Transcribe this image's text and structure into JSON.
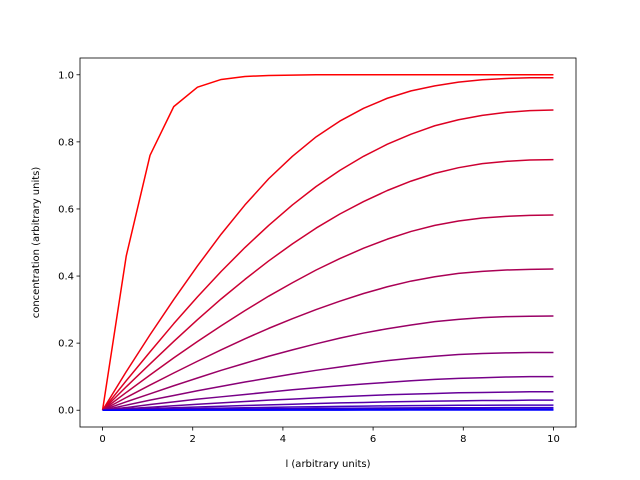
{
  "chart_data": {
    "type": "line",
    "title": "",
    "xlabel": "l (arbitrary units)",
    "ylabel": "concentration (arbitrary units)",
    "xlim": [
      -0.5,
      10.5
    ],
    "ylim": [
      -0.05,
      1.05
    ],
    "xticks": [
      0,
      2,
      4,
      6,
      8,
      10
    ],
    "yticks": [
      0.0,
      0.2,
      0.4,
      0.6,
      0.8,
      1.0
    ],
    "xtick_labels": [
      "0",
      "2",
      "4",
      "6",
      "8",
      "10"
    ],
    "ytick_labels": [
      "0.0",
      "0.2",
      "0.4",
      "0.6",
      "0.8",
      "1.0"
    ],
    "grid": false,
    "series": [
      {
        "color": "#ff0000",
        "x": [
          0,
          0.526,
          1.053,
          1.579,
          2.105,
          2.632,
          3.158,
          3.684,
          4.211,
          4.737,
          5.263,
          5.789,
          6.316,
          6.842,
          7.368,
          7.895,
          8.421,
          8.947,
          9.474,
          10
        ],
        "y": [
          0,
          0.46,
          0.76,
          0.905,
          0.963,
          0.986,
          0.995,
          0.998,
          0.999,
          1.0,
          1.0,
          1.0,
          1.0,
          1.0,
          1.0,
          1.0,
          1.0,
          1.0,
          1.0,
          1.0
        ]
      },
      {
        "color": "#ee0011",
        "x": [
          0,
          0.526,
          1.053,
          1.579,
          2.105,
          2.632,
          3.158,
          3.684,
          4.211,
          4.737,
          5.263,
          5.789,
          6.316,
          6.842,
          7.368,
          7.895,
          8.421,
          8.947,
          9.474,
          10
        ],
        "y": [
          0,
          0.115,
          0.225,
          0.33,
          0.43,
          0.525,
          0.612,
          0.69,
          0.757,
          0.815,
          0.862,
          0.9,
          0.93,
          0.952,
          0.967,
          0.978,
          0.985,
          0.989,
          0.991,
          0.991
        ]
      },
      {
        "color": "#dd0022",
        "x": [
          0,
          0.526,
          1.053,
          1.579,
          2.105,
          2.632,
          3.158,
          3.684,
          4.211,
          4.737,
          5.263,
          5.789,
          6.316,
          6.842,
          7.368,
          7.895,
          8.421,
          8.947,
          9.474,
          10
        ],
        "y": [
          0,
          0.088,
          0.174,
          0.258,
          0.338,
          0.414,
          0.485,
          0.551,
          0.612,
          0.667,
          0.715,
          0.757,
          0.793,
          0.823,
          0.848,
          0.866,
          0.879,
          0.888,
          0.893,
          0.895
        ]
      },
      {
        "color": "#cc0033",
        "x": [
          0,
          0.526,
          1.053,
          1.579,
          2.105,
          2.632,
          3.158,
          3.684,
          4.211,
          4.737,
          5.263,
          5.789,
          6.316,
          6.842,
          7.368,
          7.895,
          8.421,
          8.947,
          9.474,
          10
        ],
        "y": [
          0,
          0.07,
          0.138,
          0.205,
          0.27,
          0.332,
          0.39,
          0.445,
          0.496,
          0.543,
          0.585,
          0.622,
          0.655,
          0.683,
          0.706,
          0.723,
          0.735,
          0.742,
          0.746,
          0.747
        ]
      },
      {
        "color": "#bb0044",
        "x": [
          0,
          0.526,
          1.053,
          1.579,
          2.105,
          2.632,
          3.158,
          3.684,
          4.211,
          4.737,
          5.263,
          5.789,
          6.316,
          6.842,
          7.368,
          7.895,
          8.421,
          8.947,
          9.474,
          10
        ],
        "y": [
          0,
          0.053,
          0.105,
          0.156,
          0.205,
          0.252,
          0.297,
          0.34,
          0.38,
          0.418,
          0.452,
          0.483,
          0.51,
          0.533,
          0.551,
          0.564,
          0.573,
          0.578,
          0.581,
          0.582
        ]
      },
      {
        "color": "#aa0055",
        "x": [
          0,
          0.526,
          1.053,
          1.579,
          2.105,
          2.632,
          3.158,
          3.684,
          4.211,
          4.737,
          5.263,
          5.789,
          6.316,
          6.842,
          7.368,
          7.895,
          8.421,
          8.947,
          9.474,
          10
        ],
        "y": [
          0,
          0.038,
          0.075,
          0.111,
          0.146,
          0.18,
          0.213,
          0.244,
          0.273,
          0.3,
          0.325,
          0.348,
          0.368,
          0.385,
          0.398,
          0.408,
          0.414,
          0.418,
          0.42,
          0.421
        ]
      },
      {
        "color": "#990066",
        "x": [
          0,
          0.526,
          1.053,
          1.579,
          2.105,
          2.632,
          3.158,
          3.684,
          4.211,
          4.737,
          5.263,
          5.789,
          6.316,
          6.842,
          7.368,
          7.895,
          8.421,
          8.947,
          9.474,
          10
        ],
        "y": [
          0,
          0.025,
          0.049,
          0.073,
          0.096,
          0.119,
          0.14,
          0.161,
          0.18,
          0.198,
          0.215,
          0.23,
          0.243,
          0.254,
          0.264,
          0.271,
          0.276,
          0.279,
          0.28,
          0.281
        ]
      },
      {
        "color": "#880077",
        "x": [
          0,
          0.526,
          1.053,
          1.579,
          2.105,
          2.632,
          3.158,
          3.684,
          4.211,
          4.737,
          5.263,
          5.789,
          6.316,
          6.842,
          7.368,
          7.895,
          8.421,
          8.947,
          9.474,
          10
        ],
        "y": [
          0,
          0.015,
          0.03,
          0.044,
          0.058,
          0.071,
          0.084,
          0.096,
          0.108,
          0.119,
          0.129,
          0.139,
          0.148,
          0.155,
          0.161,
          0.166,
          0.169,
          0.171,
          0.172,
          0.172
        ]
      },
      {
        "color": "#770088",
        "x": [
          0,
          0.526,
          1.053,
          1.579,
          2.105,
          2.632,
          3.158,
          3.684,
          4.211,
          4.737,
          5.263,
          5.789,
          6.316,
          6.842,
          7.368,
          7.895,
          8.421,
          8.947,
          9.474,
          10
        ],
        "y": [
          0,
          0.008,
          0.017,
          0.025,
          0.033,
          0.04,
          0.047,
          0.054,
          0.061,
          0.067,
          0.073,
          0.078,
          0.083,
          0.088,
          0.092,
          0.095,
          0.097,
          0.099,
          0.1,
          0.1
        ]
      },
      {
        "color": "#660099",
        "x": [
          0,
          0.526,
          1.053,
          1.579,
          2.105,
          2.632,
          3.158,
          3.684,
          4.211,
          4.737,
          5.263,
          5.789,
          6.316,
          6.842,
          7.368,
          7.895,
          8.421,
          8.947,
          9.474,
          10
        ],
        "y": [
          0,
          0.0045,
          0.009,
          0.0135,
          0.0178,
          0.022,
          0.026,
          0.03,
          0.033,
          0.037,
          0.04,
          0.043,
          0.046,
          0.048,
          0.05,
          0.052,
          0.053,
          0.054,
          0.055,
          0.055
        ]
      },
      {
        "color": "#5500aa",
        "x": [
          0,
          0.526,
          1.053,
          1.579,
          2.105,
          2.632,
          3.158,
          3.684,
          4.211,
          4.737,
          5.263,
          5.789,
          6.316,
          6.842,
          7.368,
          7.895,
          8.421,
          8.947,
          9.474,
          10
        ],
        "y": [
          0,
          0.0025,
          0.005,
          0.0073,
          0.0096,
          0.012,
          0.014,
          0.016,
          0.018,
          0.02,
          0.022,
          0.023,
          0.025,
          0.026,
          0.027,
          0.028,
          0.029,
          0.029,
          0.03,
          0.03
        ]
      },
      {
        "color": "#4400bb",
        "x": [
          0,
          0.526,
          1.053,
          1.579,
          2.105,
          2.632,
          3.158,
          3.684,
          4.211,
          4.737,
          5.263,
          5.789,
          6.316,
          6.842,
          7.368,
          7.895,
          8.421,
          8.947,
          9.474,
          10
        ],
        "y": [
          0,
          0.0013,
          0.0026,
          0.0039,
          0.0051,
          0.0063,
          0.0074,
          0.0085,
          0.0095,
          0.0105,
          0.0114,
          0.0122,
          0.013,
          0.0137,
          0.0142,
          0.0147,
          0.015,
          0.0152,
          0.0153,
          0.0153
        ]
      },
      {
        "color": "#3300cc",
        "x": [
          0,
          0.526,
          1.053,
          1.579,
          2.105,
          2.632,
          3.158,
          3.684,
          4.211,
          4.737,
          5.263,
          5.789,
          6.316,
          6.842,
          7.368,
          7.895,
          8.421,
          8.947,
          9.474,
          10
        ],
        "y": [
          0,
          0.0007,
          0.0014,
          0.002,
          0.0027,
          0.0033,
          0.0039,
          0.0044,
          0.0049,
          0.0054,
          0.0058,
          0.0062,
          0.0066,
          0.0069,
          0.0072,
          0.0074,
          0.0075,
          0.0076,
          0.0077,
          0.0077
        ]
      },
      {
        "color": "#2200dd",
        "x": [
          0,
          0.526,
          1.053,
          1.579,
          2.105,
          2.632,
          3.158,
          3.684,
          4.211,
          4.737,
          5.263,
          5.789,
          6.316,
          6.842,
          7.368,
          7.895,
          8.421,
          8.947,
          9.474,
          10
        ],
        "y": [
          0,
          0.0003,
          0.0006,
          0.0009,
          0.0012,
          0.0015,
          0.0018,
          0.002,
          0.0022,
          0.0024,
          0.0026,
          0.0028,
          0.003,
          0.0031,
          0.0032,
          0.0033,
          0.0034,
          0.0034,
          0.0035,
          0.0035
        ]
      },
      {
        "color": "#1100ee",
        "x": [
          0,
          0.526,
          1.053,
          1.579,
          2.105,
          2.632,
          3.158,
          3.684,
          4.211,
          4.737,
          5.263,
          5.789,
          6.316,
          6.842,
          7.368,
          7.895,
          8.421,
          8.947,
          9.474,
          10
        ],
        "y": [
          0,
          0.0001,
          0.0002,
          0.0004,
          0.0005,
          0.0006,
          0.0007,
          0.0008,
          0.0009,
          0.001,
          0.0011,
          0.0012,
          0.0012,
          0.0013,
          0.0013,
          0.0014,
          0.0014,
          0.0014,
          0.0014,
          0.0014
        ]
      },
      {
        "color": "#0000ff",
        "x": [
          0,
          0.526,
          1.053,
          1.579,
          2.105,
          2.632,
          3.158,
          3.684,
          4.211,
          4.737,
          5.263,
          5.789,
          6.316,
          6.842,
          7.368,
          7.895,
          8.421,
          8.947,
          9.474,
          10
        ],
        "y": [
          0,
          5e-05,
          0.0001,
          0.00015,
          0.0002,
          0.00025,
          0.0003,
          0.00035,
          0.0004,
          0.00043,
          0.00046,
          0.00049,
          0.00052,
          0.00054,
          0.00056,
          0.00057,
          0.00058,
          0.00058,
          0.00059,
          0.00059
        ]
      }
    ]
  }
}
